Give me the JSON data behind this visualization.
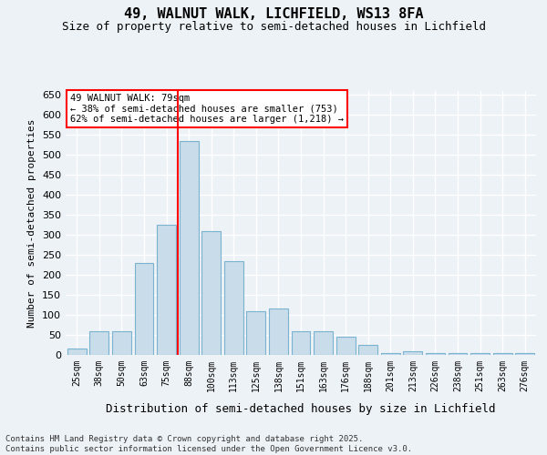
{
  "title": "49, WALNUT WALK, LICHFIELD, WS13 8FA",
  "subtitle": "Size of property relative to semi-detached houses in Lichfield",
  "xlabel": "Distribution of semi-detached houses by size in Lichfield",
  "ylabel": "Number of semi-detached properties",
  "footnote": "Contains HM Land Registry data © Crown copyright and database right 2025.\nContains public sector information licensed under the Open Government Licence v3.0.",
  "bin_labels": [
    "25sqm",
    "38sqm",
    "50sqm",
    "63sqm",
    "75sqm",
    "88sqm",
    "100sqm",
    "113sqm",
    "125sqm",
    "138sqm",
    "151sqm",
    "163sqm",
    "176sqm",
    "188sqm",
    "201sqm",
    "213sqm",
    "226sqm",
    "238sqm",
    "251sqm",
    "263sqm",
    "276sqm"
  ],
  "values": [
    15,
    60,
    60,
    230,
    325,
    535,
    310,
    235,
    110,
    115,
    60,
    60,
    45,
    25,
    5,
    10,
    5,
    5,
    5,
    5,
    5
  ],
  "bar_color": "#c9dcea",
  "bar_edge_color": "#7ab3d0",
  "red_line_index": 5,
  "annotation_text": "49 WALNUT WALK: 79sqm\n← 38% of semi-detached houses are smaller (753)\n62% of semi-detached houses are larger (1,218) →",
  "ylim": [
    0,
    660
  ],
  "yticks": [
    0,
    50,
    100,
    150,
    200,
    250,
    300,
    350,
    400,
    450,
    500,
    550,
    600,
    650
  ],
  "bg_color": "#edf2f7",
  "grid_color": "#ffffff",
  "title_fontsize": 11,
  "subtitle_fontsize": 9
}
